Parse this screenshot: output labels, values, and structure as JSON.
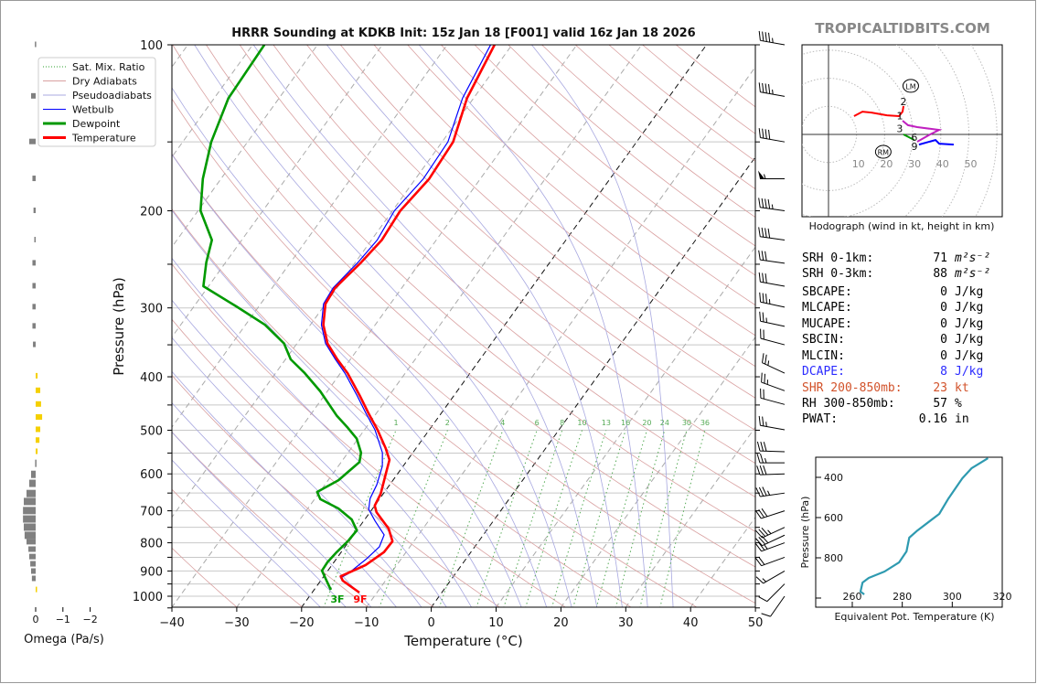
{
  "header": {
    "title": "HRRR Sounding at KDKB Init: 15z Jan 18 [F001] valid 16z Jan 18 2026",
    "watermark": "TROPICALTIDBITS.COM"
  },
  "legend": [
    {
      "label": "Sat. Mix. Ratio",
      "color": "#2ca02c",
      "style": "dotted"
    },
    {
      "label": "Dry Adiabats",
      "color": "#d9a0a0",
      "style": "solid"
    },
    {
      "label": "Pseudoadiabats",
      "color": "#a8a8e0",
      "style": "solid"
    },
    {
      "label": "Wetbulb",
      "color": "#0000ff",
      "style": "solid"
    },
    {
      "label": "Dewpoint",
      "color": "#009900",
      "style": "thick"
    },
    {
      "label": "Temperature",
      "color": "#ff0000",
      "style": "thick"
    }
  ],
  "surface_labels": {
    "dewpoint": "3F",
    "temperature": "9F"
  },
  "stats": [
    {
      "label": "SRH 0-1km:",
      "value": "71",
      "unit": "m²s⁻²",
      "color": "#000000"
    },
    {
      "label": "SRH 0-3km:",
      "value": "88",
      "unit": "m²s⁻²",
      "color": "#000000"
    },
    {
      "label": "SBCAPE:",
      "value": "0",
      "unit": "J/kg",
      "color": "#000000"
    },
    {
      "label": "MLCAPE:",
      "value": "0",
      "unit": "J/kg",
      "color": "#000000"
    },
    {
      "label": "MUCAPE:",
      "value": "0",
      "unit": "J/kg",
      "color": "#000000"
    },
    {
      "label": "SBCIN:",
      "value": "0",
      "unit": "J/kg",
      "color": "#000000"
    },
    {
      "label": "MLCIN:",
      "value": "0",
      "unit": "J/kg",
      "color": "#000000"
    },
    {
      "label": "DCAPE:",
      "value": "8",
      "unit": "J/kg",
      "color": "#2b2bff"
    },
    {
      "label": "SHR 200-850mb:",
      "value": "23",
      "unit": "kt",
      "color": "#d2522a"
    },
    {
      "label": "RH 300-850mb:",
      "value": "57",
      "unit": "%",
      "color": "#000000"
    },
    {
      "label": "PWAT:",
      "value": "0.16",
      "unit": "in",
      "color": "#000000"
    }
  ],
  "chart_data": [
    {
      "type": "line",
      "name": "skew-T log-P",
      "title": "HRRR Sounding at KDKB Init: 15z Jan 18 [F001] valid 16z Jan 18 2026",
      "xlabel": "Temperature (°C)",
      "ylabel": "Pressure (hPa)",
      "xlim": [
        -40,
        50
      ],
      "ylim": [
        1050,
        100
      ],
      "xticks": [
        "−40",
        "−30",
        "−20",
        "−10",
        "0",
        "10",
        "20",
        "30",
        "40",
        "50"
      ],
      "xtick_values": [
        -40,
        -30,
        -20,
        -10,
        0,
        10,
        20,
        30,
        40,
        50
      ],
      "yticks": [
        "100",
        "200",
        "300",
        "400",
        "500",
        "600",
        "700",
        "800",
        "900",
        "1000"
      ],
      "ytick_values": [
        100,
        200,
        300,
        400,
        500,
        600,
        700,
        800,
        900,
        1000
      ],
      "highlighted_isotherms": [
        0,
        -20
      ],
      "mixing_ratio_labels": [
        "1",
        "2",
        "4",
        "6",
        "8",
        "10",
        "13",
        "16",
        "20",
        "24",
        "30",
        "36"
      ],
      "mixing_ratio_values": [
        1,
        2,
        4,
        6,
        8,
        10,
        13,
        16,
        20,
        24,
        30,
        36
      ],
      "series": [
        {
          "name": "Temperature",
          "color": "#ff0000",
          "pressure": [
            985,
            937,
            920,
            878,
            832,
            795,
            754,
            704,
            685,
            652,
            597,
            566,
            539,
            499,
            466,
            432,
            394,
            372,
            348,
            322,
            295,
            276,
            248,
            226,
            200,
            175,
            150,
            125,
            100
          ],
          "values": [
            -12.7,
            -16.6,
            -17.4,
            -14.8,
            -13.4,
            -13.3,
            -15.3,
            -19.0,
            -20.0,
            -20.4,
            -21.9,
            -22.8,
            -24.7,
            -28.0,
            -31.2,
            -34.6,
            -38.9,
            -42.0,
            -45.3,
            -48.0,
            -50.0,
            -50.3,
            -49.1,
            -48.4,
            -48.8,
            -47.9,
            -48.3,
            -51.0,
            -52.7
          ]
        },
        {
          "name": "Dewpoint",
          "color": "#009900",
          "pressure": [
            974,
            937,
            899,
            868,
            832,
            795,
            760,
            726,
            693,
            667,
            647,
            616,
            571,
            549,
            518,
            495,
            471,
            425,
            394,
            372,
            348,
            322,
            298,
            274,
            248,
            226,
            200,
            175,
            150,
            125,
            100
          ],
          "values": [
            -17.4,
            -19.1,
            -20.9,
            -21.0,
            -20.7,
            -20.2,
            -20.0,
            -22.0,
            -25.3,
            -29.1,
            -30.4,
            -28.4,
            -27.2,
            -28.0,
            -30.2,
            -32.8,
            -35.8,
            -41.1,
            -45.5,
            -49.2,
            -52.0,
            -57.0,
            -63.5,
            -70.8,
            -73.0,
            -74.6,
            -79.6,
            -82.8,
            -85.6,
            -87.8,
            -88.2
          ]
        },
        {
          "name": "Wetbulb",
          "color": "#0000ff",
          "pressure": [
            927,
            912,
            858,
            814,
            774,
            731,
            696,
            665,
            628,
            581,
            549,
            499,
            466,
            432,
            394,
            372,
            348,
            322,
            295,
            276,
            248,
            226,
            200,
            175,
            150,
            125,
            100
          ],
          "values": [
            -17.3,
            -16.6,
            -15.4,
            -14.7,
            -15.3,
            -18.2,
            -20.5,
            -21.5,
            -22.0,
            -23.2,
            -24.7,
            -28.4,
            -31.6,
            -35.0,
            -39.3,
            -42.3,
            -45.6,
            -48.3,
            -50.3,
            -50.6,
            -49.6,
            -49.1,
            -49.7,
            -48.8,
            -49.1,
            -51.7,
            -53.3
          ]
        }
      ],
      "wind_barbs": [
        {
          "p": 100,
          "dir": 280,
          "spd": 45
        },
        {
          "p": 124,
          "dir": 280,
          "spd": 45
        },
        {
          "p": 150,
          "dir": 280,
          "spd": 40
        },
        {
          "p": 175,
          "dir": 270,
          "spd": 55
        },
        {
          "p": 200,
          "dir": 278,
          "spd": 45
        },
        {
          "p": 226,
          "dir": 278,
          "spd": 40
        },
        {
          "p": 249,
          "dir": 278,
          "spd": 30
        },
        {
          "p": 274,
          "dir": 280,
          "spd": 30
        },
        {
          "p": 299,
          "dir": 282,
          "spd": 35
        },
        {
          "p": 324,
          "dir": 282,
          "spd": 25
        },
        {
          "p": 350,
          "dir": 285,
          "spd": 20
        },
        {
          "p": 394,
          "dir": 295,
          "spd": 25
        },
        {
          "p": 424,
          "dir": 290,
          "spd": 25
        },
        {
          "p": 449,
          "dir": 285,
          "spd": 20
        },
        {
          "p": 499,
          "dir": 280,
          "spd": 25
        },
        {
          "p": 547,
          "dir": 272,
          "spd": 30
        },
        {
          "p": 573,
          "dir": 270,
          "spd": 25
        },
        {
          "p": 600,
          "dir": 268,
          "spd": 30
        },
        {
          "p": 650,
          "dir": 262,
          "spd": 35
        },
        {
          "p": 700,
          "dir": 252,
          "spd": 30
        },
        {
          "p": 750,
          "dir": 245,
          "spd": 35
        },
        {
          "p": 775,
          "dir": 245,
          "spd": 30
        },
        {
          "p": 800,
          "dir": 250,
          "spd": 25
        },
        {
          "p": 850,
          "dir": 250,
          "spd": 20
        },
        {
          "p": 900,
          "dir": 240,
          "spd": 15
        },
        {
          "p": 950,
          "dir": 225,
          "spd": 10
        },
        {
          "p": 1000,
          "dir": 215,
          "spd": 10
        }
      ]
    },
    {
      "type": "bar",
      "name": "omega profile",
      "xlabel": "Omega (Pa/s)",
      "xticks": [
        "0",
        "−1",
        "−2"
      ],
      "xtick_values": [
        0,
        -1,
        -2
      ],
      "pressure": [
        100,
        124,
        150,
        175,
        200,
        226,
        249,
        274,
        299,
        324,
        350,
        399,
        424,
        449,
        474,
        499,
        522,
        547,
        573,
        600,
        623,
        650,
        672,
        698,
        723,
        748,
        774,
        798,
        823,
        849,
        875,
        902,
        930,
        974
      ],
      "values": [
        0.03,
        0.17,
        0.24,
        0.12,
        0.08,
        0.05,
        0.12,
        0.12,
        0.12,
        0.12,
        0.1,
        -0.07,
        -0.17,
        -0.2,
        -0.24,
        -0.17,
        -0.14,
        -0.07,
        0.02,
        0.17,
        0.24,
        0.34,
        0.44,
        0.47,
        0.47,
        0.44,
        0.41,
        0.34,
        0.27,
        0.24,
        0.2,
        0.17,
        0.14,
        -0.03
      ],
      "colors": {
        "positive": "#808080",
        "negative": "#f5d000"
      }
    },
    {
      "type": "line",
      "name": "hodograph",
      "title": "Hodograph (wind in kt, height in km)",
      "ring_labels": [
        "10",
        "20",
        "30",
        "40",
        "50"
      ],
      "ring_values": [
        10,
        20,
        30,
        40,
        50
      ],
      "segments": [
        {
          "color": "#ff0000",
          "u": [
            9.1,
            12.1,
            15.3,
            20.8,
            25.1,
            26.4,
            26.7
          ],
          "v": [
            6.5,
            8.1,
            7.8,
            6.8,
            6.5,
            8.1,
            10.1
          ]
        },
        {
          "color": "#c020c0",
          "u": [
            26.4,
            28.3,
            31.6,
            39.4,
            36.2,
            31.6
          ],
          "v": [
            4.9,
            3.3,
            2.6,
            1.6,
            0.0,
            -2.6
          ]
        },
        {
          "color": "#009900",
          "u": [
            26.7,
            30.6
          ],
          "v": [
            0.0,
            -2.0
          ]
        },
        {
          "color": "#0000ff",
          "u": [
            32.2,
            38.1,
            39.4,
            44.6
          ],
          "v": [
            -3.6,
            -2.0,
            -3.3,
            -3.6
          ]
        }
      ],
      "height_labels": [
        {
          "text": "1",
          "u": 25.4,
          "v": 6.6
        },
        {
          "text": "2",
          "u": 26.7,
          "v": 11.8
        },
        {
          "text": "3",
          "u": 27.0,
          "v": 1.8
        },
        {
          "text": "6",
          "u": 29.6,
          "v": 0.0
        },
        {
          "text": "9",
          "u": 30.6,
          "v": -3.6
        }
      ],
      "storm_motion": [
        {
          "text": "LM",
          "u": 29.3,
          "v": 17.3
        },
        {
          "text": "RM",
          "u": 19.5,
          "v": -6.2
        }
      ]
    },
    {
      "type": "line",
      "name": "theta-e profile",
      "xlabel": "Equivalent Pot. Temperature (K)",
      "ylabel": "Pressure (hPa)",
      "xticks": [
        "260",
        "280",
        "300",
        "320"
      ],
      "xtick_values": [
        260,
        280,
        300,
        320
      ],
      "yticks": [
        "400",
        "600",
        "800"
      ],
      "ytick_values": [
        400,
        600,
        800
      ],
      "color": "#2e9ab0",
      "pressure": [
        982,
        968,
        923,
        900,
        868,
        823,
        768,
        700,
        664,
        582,
        505,
        405,
        355,
        305
      ],
      "values": [
        264.8,
        263.3,
        264.1,
        266.6,
        272.9,
        278.7,
        281.7,
        282.8,
        286.1,
        294.8,
        298.5,
        304.0,
        307.7,
        314.3
      ]
    }
  ]
}
